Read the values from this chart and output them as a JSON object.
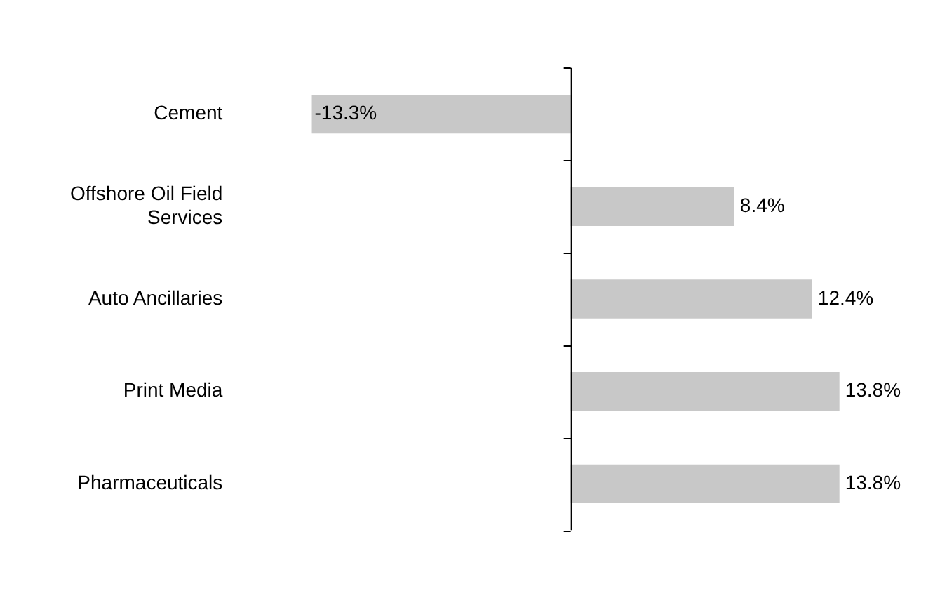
{
  "chart_data": {
    "type": "bar",
    "orientation": "horizontal",
    "categories": [
      "Cement",
      "Offshore Oil Field Services",
      "Auto Ancillaries",
      "Print Media",
      "Pharmaceuticals"
    ],
    "values": [
      -13.3,
      8.4,
      12.4,
      13.8,
      13.8
    ],
    "color": "#c8c8c8",
    "value_labels": [
      "-13.3%",
      "8.4%",
      "12.4%",
      "13.8%",
      "13.8%"
    ],
    "grid": false,
    "legend": false
  }
}
